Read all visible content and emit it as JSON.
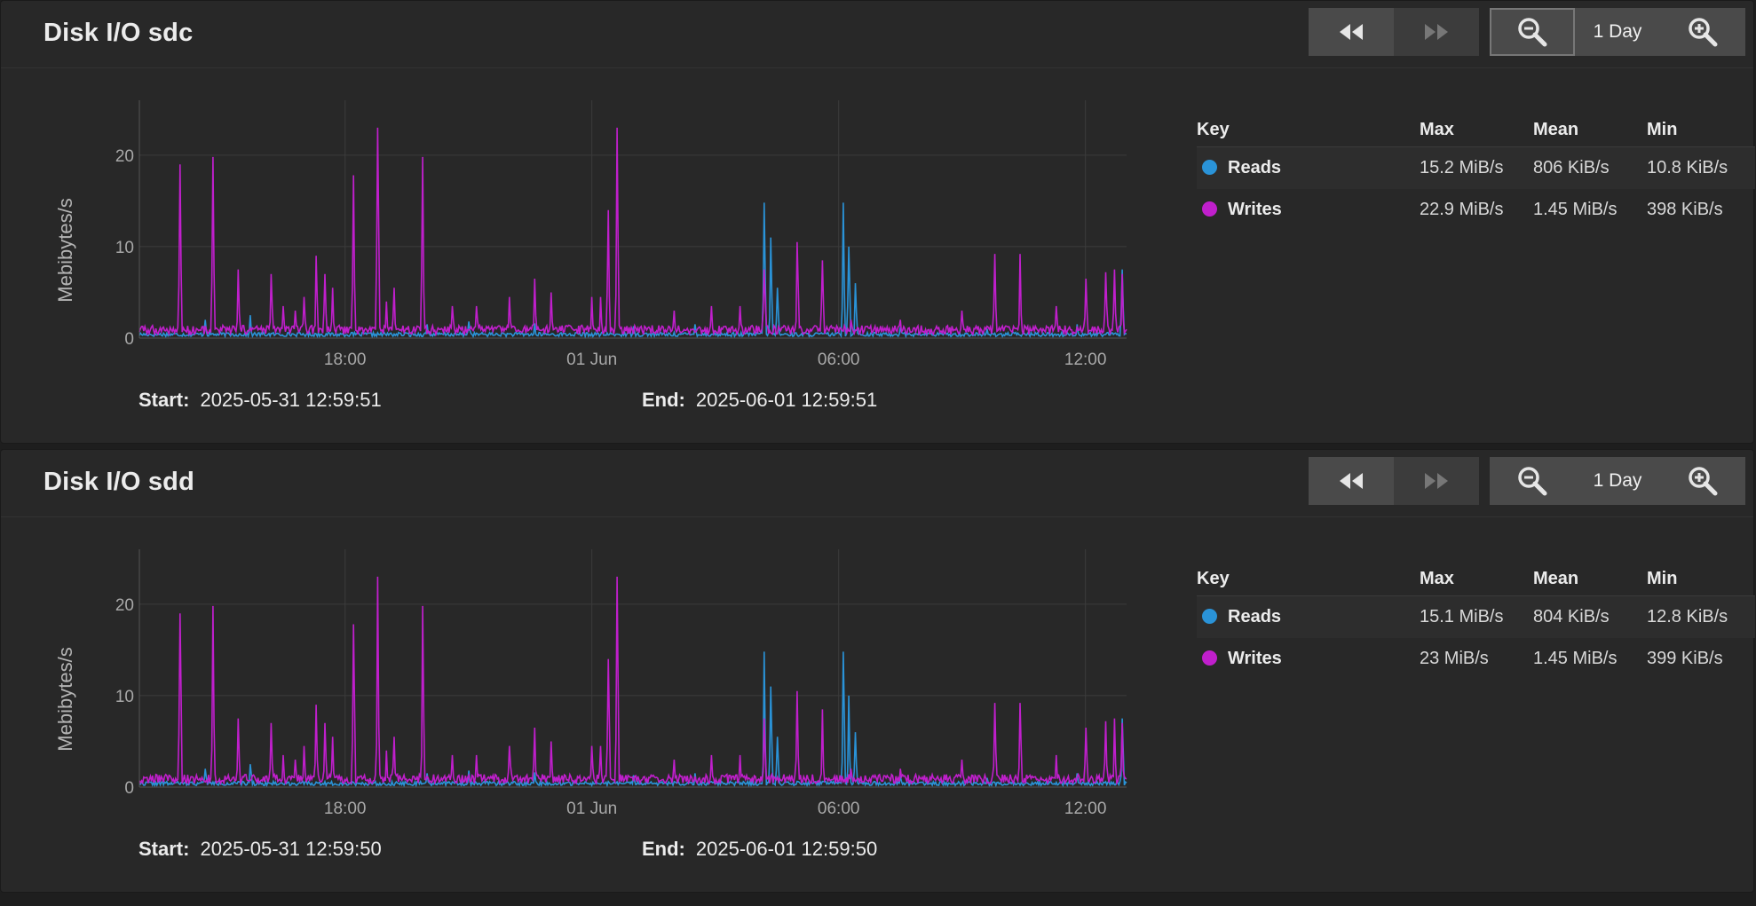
{
  "colors": {
    "reads": "#2a93d8",
    "writes": "#c01fcc",
    "grid": "#3b3b3b"
  },
  "controls": {
    "back_icon": "rewind-icon",
    "forward_icon": "fast-forward-icon",
    "zoom_out_icon": "zoom-out-icon",
    "zoom_in_icon": "zoom-in-icon"
  },
  "panels": [
    {
      "title": "Disk I/O sdc",
      "range_label": "1 Day",
      "start_label": "Start:",
      "start_value": "2025-05-31 12:59:51",
      "end_label": "End:",
      "end_value": "2025-06-01 12:59:51",
      "legend": {
        "headers": [
          "Key",
          "Max",
          "Mean",
          "Min"
        ],
        "rows": [
          {
            "key": "Reads",
            "max": "15.2 MiB/s",
            "mean": "806 KiB/s",
            "min": "10.8 KiB/s"
          },
          {
            "key": "Writes",
            "max": "22.9 MiB/s",
            "mean": "1.45 MiB/s",
            "min": "398 KiB/s"
          }
        ]
      },
      "chart_data": {
        "type": "line",
        "ylabel": "Mebibytes/s",
        "ylim": [
          0,
          26
        ],
        "yticks": [
          0,
          10,
          20
        ],
        "x_range_hours": [
          12.999,
          37.0
        ],
        "xticks": [
          {
            "label": "18:00",
            "hour": 18
          },
          {
            "label": "01 Jun",
            "hour": 24
          },
          {
            "label": "06:00",
            "hour": 30
          },
          {
            "label": "12:00",
            "hour": 36
          }
        ],
        "series": [
          {
            "name": "Reads",
            "base_level": 0.4,
            "spikes": [
              [
                14.6,
                2.0
              ],
              [
                15.7,
                2.5
              ],
              [
                20.0,
                1.5
              ],
              [
                21.0,
                1.8
              ],
              [
                22.6,
                1.6
              ],
              [
                25.0,
                1.3
              ],
              [
                26.5,
                1.5
              ],
              [
                28.2,
                14.8
              ],
              [
                28.35,
                11.0
              ],
              [
                28.5,
                5.5
              ],
              [
                30.1,
                14.8
              ],
              [
                30.25,
                10.0
              ],
              [
                30.4,
                6.0
              ],
              [
                31.5,
                1.2
              ],
              [
                33.6,
                1.0
              ],
              [
                35.8,
                1.5
              ],
              [
                36.9,
                7.5
              ]
            ]
          },
          {
            "name": "Writes",
            "base_level": 0.9,
            "spikes": [
              [
                14.0,
                19.0
              ],
              [
                14.8,
                19.8
              ],
              [
                15.4,
                7.5
              ],
              [
                16.2,
                7.0
              ],
              [
                16.5,
                3.5
              ],
              [
                16.8,
                3.0
              ],
              [
                17.0,
                4.5
              ],
              [
                17.3,
                9.0
              ],
              [
                17.5,
                7.0
              ],
              [
                17.7,
                5.5
              ],
              [
                18.2,
                17.8
              ],
              [
                18.8,
                23.0
              ],
              [
                19.0,
                4.0
              ],
              [
                19.2,
                5.5
              ],
              [
                19.9,
                19.8
              ],
              [
                20.6,
                3.5
              ],
              [
                21.2,
                3.5
              ],
              [
                22.0,
                4.5
              ],
              [
                22.6,
                6.5
              ],
              [
                23.0,
                5.0
              ],
              [
                24.0,
                4.5
              ],
              [
                24.2,
                4.5
              ],
              [
                24.4,
                14.0
              ],
              [
                24.6,
                23.0
              ],
              [
                26.0,
                3.0
              ],
              [
                26.9,
                3.5
              ],
              [
                27.6,
                3.5
              ],
              [
                28.2,
                7.5
              ],
              [
                29.0,
                10.5
              ],
              [
                29.6,
                8.5
              ],
              [
                30.3,
                2.0
              ],
              [
                31.5,
                2.0
              ],
              [
                33.0,
                3.0
              ],
              [
                33.8,
                9.2
              ],
              [
                34.4,
                9.2
              ],
              [
                35.3,
                3.5
              ],
              [
                36.0,
                6.5
              ],
              [
                36.5,
                7.2
              ],
              [
                36.7,
                7.5
              ],
              [
                36.9,
                7.0
              ]
            ]
          }
        ]
      }
    },
    {
      "title": "Disk I/O sdd",
      "range_label": "1 Day",
      "start_label": "Start:",
      "start_value": "2025-05-31 12:59:50",
      "end_label": "End:",
      "end_value": "2025-06-01 12:59:50",
      "legend": {
        "headers": [
          "Key",
          "Max",
          "Mean",
          "Min"
        ],
        "rows": [
          {
            "key": "Reads",
            "max": "15.1 MiB/s",
            "mean": "804 KiB/s",
            "min": "12.8 KiB/s"
          },
          {
            "key": "Writes",
            "max": "23 MiB/s",
            "mean": "1.45 MiB/s",
            "min": "399 KiB/s"
          }
        ]
      },
      "chart_data": {
        "type": "line",
        "ylabel": "Mebibytes/s",
        "ylim": [
          0,
          26
        ],
        "yticks": [
          0,
          10,
          20
        ],
        "x_range_hours": [
          12.999,
          37.0
        ],
        "xticks": [
          {
            "label": "18:00",
            "hour": 18
          },
          {
            "label": "01 Jun",
            "hour": 24
          },
          {
            "label": "06:00",
            "hour": 30
          },
          {
            "label": "12:00",
            "hour": 36
          }
        ],
        "series": [
          {
            "name": "Reads",
            "base_level": 0.4,
            "spikes": [
              [
                14.6,
                2.0
              ],
              [
                15.7,
                2.5
              ],
              [
                20.0,
                1.5
              ],
              [
                21.0,
                1.8
              ],
              [
                22.6,
                1.6
              ],
              [
                25.0,
                1.3
              ],
              [
                26.5,
                1.5
              ],
              [
                28.2,
                14.8
              ],
              [
                28.35,
                11.0
              ],
              [
                28.5,
                5.5
              ],
              [
                30.1,
                14.8
              ],
              [
                30.25,
                10.0
              ],
              [
                30.4,
                6.0
              ],
              [
                31.5,
                1.2
              ],
              [
                33.6,
                1.0
              ],
              [
                35.8,
                1.5
              ],
              [
                36.9,
                7.5
              ]
            ]
          },
          {
            "name": "Writes",
            "base_level": 0.9,
            "spikes": [
              [
                14.0,
                19.0
              ],
              [
                14.8,
                19.8
              ],
              [
                15.4,
                7.5
              ],
              [
                16.2,
                7.0
              ],
              [
                16.5,
                3.5
              ],
              [
                16.8,
                3.0
              ],
              [
                17.0,
                4.5
              ],
              [
                17.3,
                9.0
              ],
              [
                17.5,
                7.0
              ],
              [
                17.7,
                5.5
              ],
              [
                18.2,
                17.8
              ],
              [
                18.8,
                23.0
              ],
              [
                19.0,
                4.0
              ],
              [
                19.2,
                5.5
              ],
              [
                19.9,
                19.8
              ],
              [
                20.6,
                3.5
              ],
              [
                21.2,
                3.5
              ],
              [
                22.0,
                4.5
              ],
              [
                22.6,
                6.5
              ],
              [
                23.0,
                5.0
              ],
              [
                24.0,
                4.5
              ],
              [
                24.2,
                4.5
              ],
              [
                24.4,
                14.0
              ],
              [
                24.6,
                23.0
              ],
              [
                26.0,
                3.0
              ],
              [
                26.9,
                3.5
              ],
              [
                27.6,
                3.5
              ],
              [
                28.2,
                7.5
              ],
              [
                29.0,
                10.5
              ],
              [
                29.6,
                8.5
              ],
              [
                30.3,
                2.0
              ],
              [
                31.5,
                2.0
              ],
              [
                33.0,
                3.0
              ],
              [
                33.8,
                9.2
              ],
              [
                34.4,
                9.2
              ],
              [
                35.3,
                3.5
              ],
              [
                36.0,
                6.5
              ],
              [
                36.5,
                7.2
              ],
              [
                36.7,
                7.5
              ],
              [
                36.9,
                7.0
              ]
            ]
          }
        ]
      }
    }
  ]
}
